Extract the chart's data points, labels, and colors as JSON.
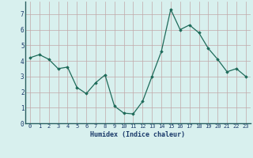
{
  "x": [
    0,
    1,
    2,
    3,
    4,
    5,
    6,
    7,
    8,
    9,
    10,
    11,
    12,
    13,
    14,
    15,
    16,
    17,
    18,
    19,
    20,
    21,
    22,
    23
  ],
  "y": [
    4.2,
    4.4,
    4.1,
    3.5,
    3.6,
    2.3,
    1.9,
    2.6,
    3.1,
    1.1,
    0.65,
    0.6,
    1.4,
    3.0,
    4.6,
    7.3,
    6.0,
    6.3,
    5.8,
    4.8,
    4.1,
    3.3,
    3.5,
    3.0
  ],
  "xlabel": "Humidex (Indice chaleur)",
  "xlim": [
    -0.5,
    23.5
  ],
  "ylim": [
    0,
    7.8
  ],
  "yticks": [
    0,
    1,
    2,
    3,
    4,
    5,
    6,
    7
  ],
  "xticks": [
    0,
    1,
    2,
    3,
    4,
    5,
    6,
    7,
    8,
    9,
    10,
    11,
    12,
    13,
    14,
    15,
    16,
    17,
    18,
    19,
    20,
    21,
    22,
    23
  ],
  "line_color": "#1e6b5a",
  "marker_color": "#1e6b5a",
  "bg_color": "#d8f0ee",
  "grid_color_major": "#c0a8a8",
  "grid_color_minor": "#c0a8a8",
  "label_color": "#1a3a6a",
  "spine_color": "#2a6060",
  "tick_label_fontsize": 5.0,
  "xlabel_fontsize": 6.0
}
